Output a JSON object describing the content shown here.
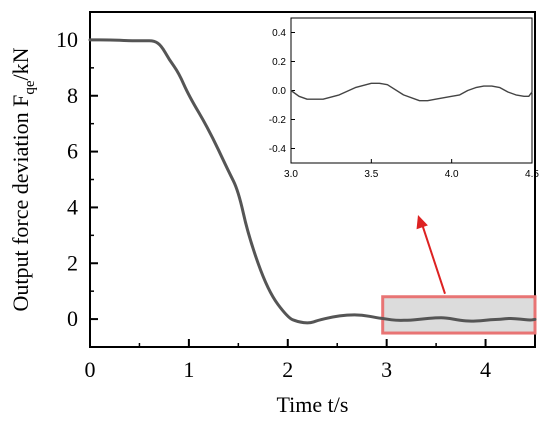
{
  "chart_data": [
    {
      "type": "line",
      "title": "",
      "xlabel": "Time t/s",
      "ylabel_main": "Output force deviation F",
      "ylabel_sub": "qe",
      "ylabel_tail": "/kN",
      "xlim": [
        0,
        4.5
      ],
      "ylim": [
        -1,
        11
      ],
      "xticks": [
        "0",
        "1",
        "2",
        "3",
        "4"
      ],
      "yticks": [
        "0",
        "2",
        "4",
        "6",
        "8",
        "10"
      ],
      "xtick_values": [
        0,
        1,
        2,
        3,
        4
      ],
      "ytick_values": [
        0,
        2,
        4,
        6,
        8,
        10
      ],
      "series": [
        {
          "x": [
            0,
            0.2,
            0.4,
            0.55,
            0.65,
            0.72,
            0.8,
            0.9,
            1.0,
            1.2,
            1.4,
            1.5,
            1.6,
            1.8,
            2.0,
            2.1,
            2.22,
            2.3,
            2.45,
            2.6,
            2.75,
            2.9,
            3.0,
            3.1,
            3.25,
            3.35,
            3.5,
            3.6,
            3.75,
            3.85,
            3.95,
            4.05,
            4.15,
            4.25,
            4.35,
            4.45,
            4.5
          ],
          "y": [
            10,
            10,
            9.97,
            9.97,
            9.97,
            9.8,
            9.3,
            8.8,
            8.0,
            6.8,
            5.3,
            4.6,
            3.0,
            1.0,
            0.05,
            -0.1,
            -0.15,
            -0.05,
            0.08,
            0.15,
            0.15,
            0.05,
            0.0,
            -0.05,
            -0.04,
            0.0,
            0.05,
            0.05,
            -0.05,
            -0.08,
            -0.06,
            -0.02,
            -0.01,
            0.03,
            0.0,
            -0.04,
            -0.01
          ],
          "color": "#555555"
        }
      ],
      "highlight_box": {
        "x_range": [
          2.96,
          4.5
        ],
        "y_range": [
          -0.5,
          0.8
        ],
        "fill": "#dcdcdc",
        "stroke": "#e87474"
      },
      "arrow_color": "#dd2222"
    },
    {
      "type": "line",
      "title": "",
      "xlabel": "",
      "ylabel": "",
      "xlim": [
        3.0,
        4.5
      ],
      "ylim": [
        -0.5,
        0.5
      ],
      "xticks": [
        "3.0",
        "3.5",
        "4.0",
        "4.5"
      ],
      "yticks": [
        "0.4",
        "0.2",
        "0.0",
        "-0.2",
        "-0.4"
      ],
      "xtick_values": [
        3.0,
        3.5,
        4.0,
        4.5
      ],
      "ytick_values": [
        0.4,
        0.2,
        0.0,
        -0.2,
        -0.4
      ],
      "series": [
        {
          "x": [
            3.0,
            3.05,
            3.1,
            3.2,
            3.3,
            3.4,
            3.5,
            3.55,
            3.6,
            3.7,
            3.8,
            3.85,
            3.9,
            4.0,
            4.05,
            4.1,
            4.15,
            4.2,
            4.25,
            4.3,
            4.35,
            4.4,
            4.45,
            4.48,
            4.5
          ],
          "y": [
            0.0,
            -0.04,
            -0.06,
            -0.06,
            -0.03,
            0.02,
            0.05,
            0.05,
            0.04,
            -0.03,
            -0.07,
            -0.07,
            -0.06,
            -0.04,
            -0.03,
            0.0,
            0.02,
            0.03,
            0.03,
            0.02,
            -0.01,
            -0.03,
            -0.04,
            -0.04,
            -0.01
          ],
          "color": "#444444"
        }
      ]
    }
  ]
}
